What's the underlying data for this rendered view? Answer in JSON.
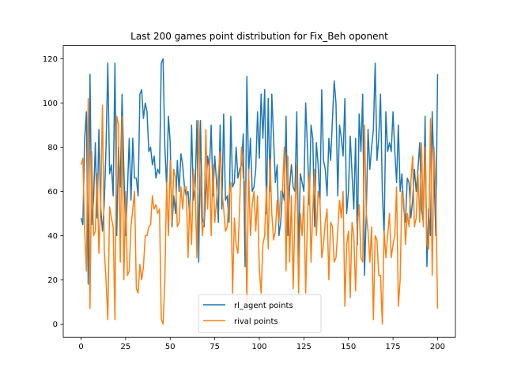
{
  "chart_data": {
    "type": "line",
    "title": "Last 200 games point distribution for Fix_Beh oponent",
    "xlabel": "",
    "ylabel": "",
    "xlim": [
      -10,
      210
    ],
    "ylim": [
      -6,
      126
    ],
    "xticks": [
      0,
      25,
      50,
      75,
      100,
      125,
      150,
      175,
      200
    ],
    "yticks": [
      0,
      20,
      40,
      60,
      80,
      100,
      120
    ],
    "grid": false,
    "legend_position": "lower-center",
    "series": [
      {
        "name": "rl_agent points",
        "color": "#1f77b4",
        "values": [
          48,
          45,
          84,
          96,
          18,
          113,
          45,
          56,
          82,
          48,
          88,
          53,
          42,
          54,
          80,
          118,
          68,
          72,
          58,
          118,
          40,
          80,
          62,
          104,
          70,
          40,
          60,
          84,
          56,
          84,
          66,
          66,
          58,
          104,
          106,
          93,
          100,
          96,
          78,
          80,
          72,
          76,
          66,
          70,
          68,
          118,
          120,
          80,
          62,
          94,
          82,
          44,
          58,
          50,
          74,
          60,
          77,
          72,
          62,
          58,
          60,
          48,
          90,
          56,
          62,
          92,
          28,
          92,
          48,
          44,
          60,
          76,
          70,
          90,
          58,
          76,
          64,
          46,
          90,
          52,
          95,
          56,
          58,
          46,
          94,
          62,
          64,
          80,
          66,
          70,
          72,
          86,
          26,
          112,
          68,
          84,
          60,
          62,
          70,
          96,
          75,
          104,
          84,
          106,
          50,
          102,
          60,
          104,
          84,
          64,
          72,
          40,
          46,
          60,
          56,
          94,
          40,
          62,
          72,
          62,
          60,
          96,
          30,
          68,
          64,
          60,
          100,
          80,
          54,
          90,
          84,
          44,
          82,
          72,
          54,
          106,
          74,
          70,
          58,
          84,
          74,
          92,
          110,
          100,
          58,
          90,
          84,
          76,
          102,
          50,
          60,
          85,
          68,
          52,
          84,
          36,
          95,
          78,
          104,
          22,
          50,
          88,
          70,
          80,
          88,
          118,
          74,
          84,
          104,
          60,
          40,
          96,
          78,
          82,
          78,
          96,
          78,
          64,
          90,
          60,
          68,
          52,
          46,
          66,
          64,
          48,
          56,
          70,
          60,
          70,
          82,
          52,
          46,
          94,
          26,
          52,
          40,
          96,
          68,
          40,
          113
        ]
      },
      {
        "name": "rival points",
        "color": "#ff7f0e",
        "values": [
          72,
          75,
          42,
          24,
          102,
          7,
          78,
          40,
          42,
          68,
          32,
          54,
          99,
          34,
          20,
          2,
          53,
          48,
          44,
          2,
          94,
          90,
          28,
          94,
          20,
          60,
          22,
          24,
          44,
          52,
          60,
          16,
          14,
          27,
          20,
          26,
          40,
          40,
          44,
          45,
          58,
          52,
          54,
          50,
          52,
          2,
          0,
          20,
          64,
          40,
          74,
          46,
          70,
          66,
          44,
          46,
          62,
          52,
          62,
          62,
          30,
          56,
          36,
          70,
          60,
          30,
          92,
          60,
          40,
          48,
          88,
          52,
          74,
          40,
          72,
          46,
          56,
          68,
          78,
          60,
          52,
          42,
          44,
          58,
          64,
          14,
          48,
          36,
          32,
          54,
          80,
          66,
          64,
          10,
          70,
          40,
          54,
          60,
          42,
          58,
          25,
          14,
          36,
          40,
          62,
          34,
          75,
          50,
          38,
          42,
          56,
          46,
          60,
          60,
          80,
          24,
          76,
          28,
          58,
          16,
          52,
          72,
          14,
          50,
          40,
          58,
          14,
          48,
          68,
          28,
          52,
          70,
          40,
          60,
          56,
          30,
          36,
          46,
          52,
          20,
          46,
          44,
          28,
          30,
          42,
          56,
          48,
          60,
          8,
          36,
          42,
          12,
          46,
          40,
          15,
          44,
          54,
          30,
          28,
          90,
          50,
          42,
          28,
          44,
          2,
          40,
          38,
          22,
          22,
          0,
          42,
          30,
          40,
          50,
          30,
          36,
          40,
          62,
          8,
          20,
          60,
          56,
          36,
          50,
          44,
          64,
          76,
          44,
          48,
          68,
          46,
          82,
          44,
          80,
          36,
          34,
          93,
          22,
          80,
          60,
          7
        ]
      }
    ]
  }
}
